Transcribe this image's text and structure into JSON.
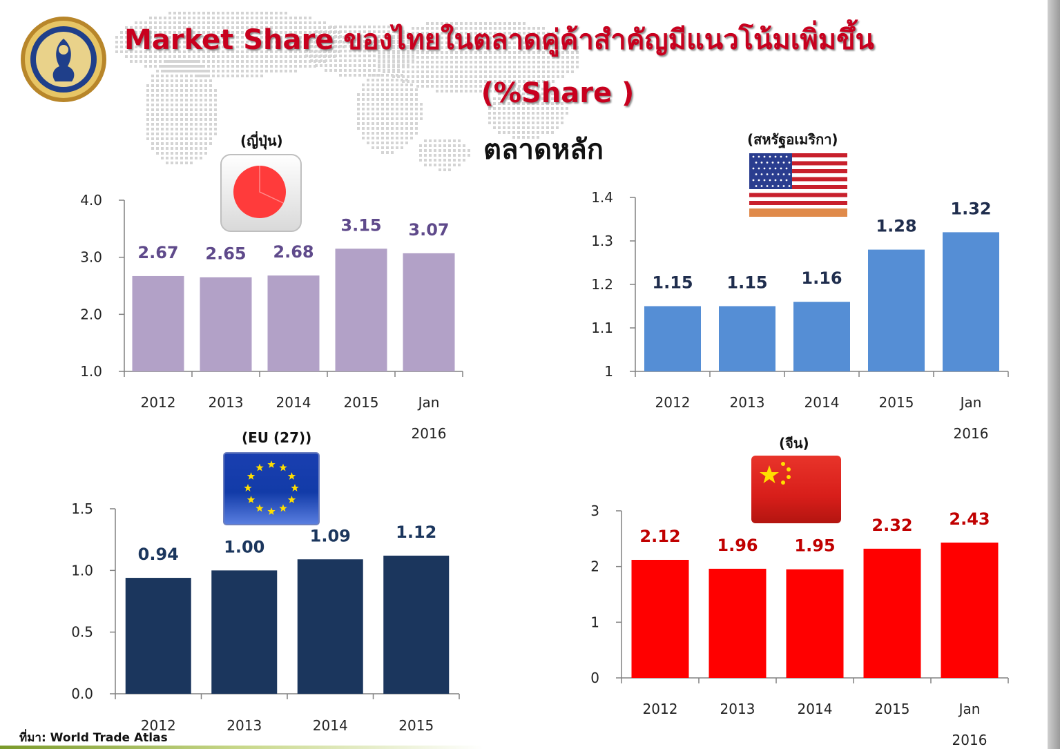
{
  "title": {
    "line1": "Market Share  ของไทยในตลาดคู่ค้าสำคัญมีแนวโน้มเพิ่มขึ้น",
    "line2": "(%Share )",
    "main_markets": "ตลาดหลัก"
  },
  "source": "ที่มา: World Trade Atlas",
  "icons": {
    "seal": "government-seal-icon",
    "japan_flag": "japan-flag-icon",
    "usa_flag": "usa-flag-icon",
    "eu_flag": "eu-flag-icon",
    "china_flag": "china-flag-icon"
  },
  "chart_data": [
    {
      "id": "japan",
      "type": "bar",
      "country_label": "(ญี่ปุ่น)",
      "categories": [
        "2012",
        "2013",
        "2014",
        "2015",
        "Jan\n2016"
      ],
      "values": [
        2.67,
        2.65,
        2.68,
        3.15,
        3.07
      ],
      "value_labels": [
        "2.67",
        "2.65",
        "2.68",
        "3.15",
        "3.07"
      ],
      "ylim": [
        1.0,
        4.0
      ],
      "yticks": [
        1.0,
        2.0,
        3.0,
        4.0
      ],
      "ytick_labels": [
        "1.0",
        "2.0",
        "3.0",
        "4.0"
      ],
      "bar_color": "#b2a1c7",
      "label_color": "#5f4a8b",
      "grid": false
    },
    {
      "id": "usa",
      "type": "bar",
      "country_label": "(สหรัฐอเมริกา)",
      "categories": [
        "2012",
        "2013",
        "2014",
        "2015",
        "Jan\n2016"
      ],
      "values": [
        1.15,
        1.15,
        1.16,
        1.28,
        1.32
      ],
      "value_labels": [
        "1.15",
        "1.15",
        "1.16",
        "1.28",
        "1.32"
      ],
      "ylim": [
        1.0,
        1.4
      ],
      "yticks": [
        1.0,
        1.1,
        1.2,
        1.3,
        1.4
      ],
      "ytick_labels": [
        "1",
        "1.1",
        "1.2",
        "1.3",
        "1.4"
      ],
      "bar_color": "#558ed5",
      "label_color": "#1f2d4d",
      "grid": false
    },
    {
      "id": "eu",
      "type": "bar",
      "country_label": "(EU (27))",
      "categories": [
        "2012",
        "2013",
        "2014",
        "2015"
      ],
      "values": [
        0.94,
        1.0,
        1.09,
        1.12
      ],
      "value_labels": [
        "0.94",
        "1.00",
        "1.09",
        "1.12"
      ],
      "ylim": [
        0.0,
        1.5
      ],
      "yticks": [
        0.0,
        0.5,
        1.0,
        1.5
      ],
      "ytick_labels": [
        "0.0",
        "0.5",
        "1.0",
        "1.5"
      ],
      "bar_color": "#1b365d",
      "label_color": "#1b365d",
      "grid": false
    },
    {
      "id": "china",
      "type": "bar",
      "country_label": "(จีน)",
      "categories": [
        "2012",
        "2013",
        "2014",
        "2015",
        "Jan\n2016"
      ],
      "values": [
        2.12,
        1.96,
        1.95,
        2.32,
        2.43
      ],
      "value_labels": [
        "2.12",
        "1.96",
        "1.95",
        "2.32",
        "2.43"
      ],
      "ylim": [
        0,
        3
      ],
      "yticks": [
        0,
        1,
        2,
        3
      ],
      "ytick_labels": [
        "0",
        "1",
        "2",
        "3"
      ],
      "bar_color": "#ff0000",
      "label_color": "#c00000",
      "grid": false
    }
  ]
}
